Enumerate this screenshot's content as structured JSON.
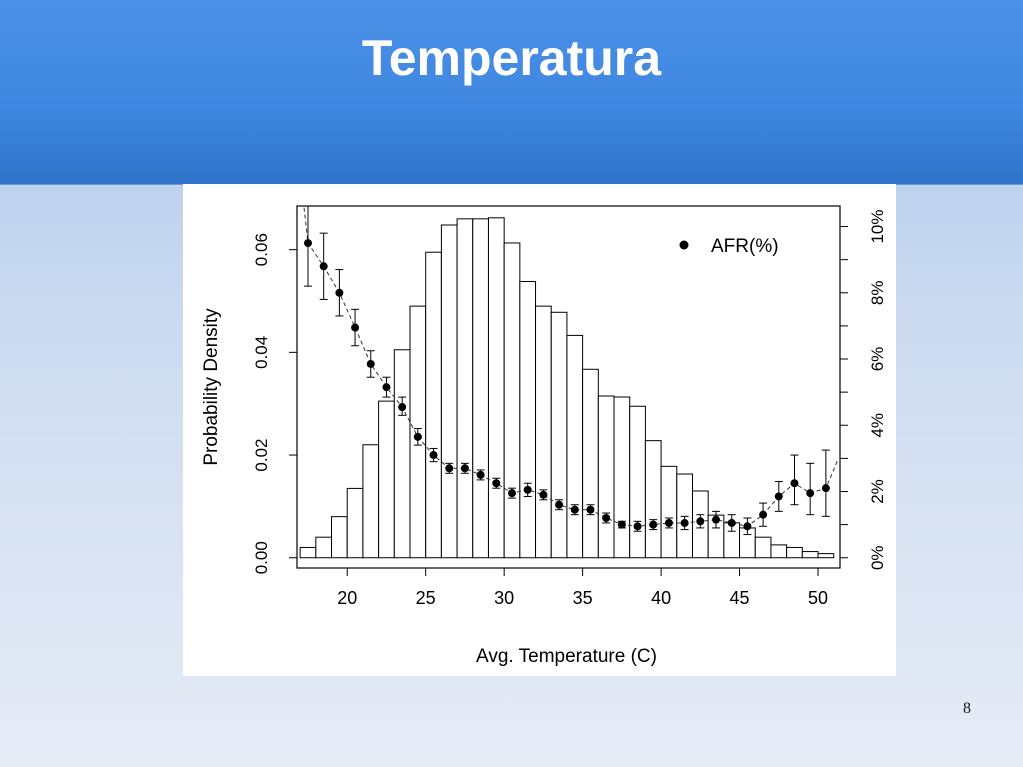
{
  "slide": {
    "title": "Temperatura",
    "page_number": "8"
  },
  "colors": {
    "header": "#4a90e6",
    "header_band": "#2f72c9",
    "title_text": "#ffffff",
    "ink": "#000000",
    "bar_fill": "#ffffff"
  },
  "chart_data": {
    "type": "bar",
    "title": "",
    "xlabel": "Avg. Temperature (C)",
    "ylabel": "Probability Density",
    "xlim": [
      16.8,
      51.4
    ],
    "ylim": [
      -0.002,
      0.0685
    ],
    "xticks": [
      20,
      25,
      30,
      35,
      40,
      45,
      50
    ],
    "yticks": [
      0.0,
      0.02,
      0.04,
      0.06
    ],
    "ytick_labels": [
      "0.00",
      "0.02",
      "0.04",
      "0.06"
    ],
    "y2label": "",
    "y2lim": [
      -0.31,
      10.62
    ],
    "y2ticks": [
      0,
      1,
      2,
      3,
      4,
      5,
      6,
      7,
      8,
      9,
      10
    ],
    "y2tick_labels": [
      {
        "v": 0,
        "label": "0%"
      },
      {
        "v": 2,
        "label": "2%"
      },
      {
        "v": 4,
        "label": "4%"
      },
      {
        "v": 6,
        "label": "6%"
      },
      {
        "v": 8,
        "label": "8%"
      },
      {
        "v": 10,
        "label": "10%"
      }
    ],
    "grid": false,
    "legend": {
      "position": "top-right",
      "entries": [
        "AFR(%)"
      ]
    },
    "histogram": {
      "bin_width": 1,
      "bin_start": [
        17,
        18,
        19,
        20,
        21,
        22,
        23,
        24,
        25,
        26,
        27,
        28,
        29,
        30,
        31,
        32,
        33,
        34,
        35,
        36,
        37,
        38,
        39,
        40,
        41,
        42,
        43,
        44,
        45,
        46,
        47,
        48,
        49,
        50
      ],
      "density": [
        0.002,
        0.004,
        0.008,
        0.0135,
        0.022,
        0.0305,
        0.0405,
        0.049,
        0.0595,
        0.0648,
        0.066,
        0.066,
        0.0662,
        0.0613,
        0.0538,
        0.049,
        0.0478,
        0.0433,
        0.0367,
        0.0315,
        0.0313,
        0.0295,
        0.0228,
        0.0178,
        0.0163,
        0.013,
        0.0083,
        0.0068,
        0.0058,
        0.004,
        0.0025,
        0.002,
        0.0012,
        0.0008
      ]
    },
    "series": [
      {
        "name": "AFR(%)",
        "axis": "right",
        "x": [
          17.5,
          18.5,
          19.5,
          20.5,
          21.5,
          22.5,
          23.5,
          24.5,
          25.5,
          26.5,
          27.5,
          28.5,
          29.5,
          30.5,
          31.5,
          32.5,
          33.5,
          34.5,
          35.5,
          36.5,
          37.5,
          38.5,
          39.5,
          40.5,
          41.5,
          42.5,
          43.5,
          44.5,
          45.5,
          46.5,
          47.5,
          48.5,
          49.5,
          50.5
        ],
        "y": [
          9.5,
          8.8,
          8.0,
          6.95,
          5.85,
          5.15,
          4.55,
          3.65,
          3.1,
          2.7,
          2.7,
          2.5,
          2.25,
          1.95,
          2.05,
          1.9,
          1.6,
          1.45,
          1.45,
          1.2,
          1.0,
          0.95,
          1.0,
          1.05,
          1.05,
          1.1,
          1.15,
          1.05,
          0.95,
          1.3,
          1.85,
          2.25,
          1.95,
          2.1
        ],
        "err_low": [
          8.2,
          7.8,
          7.3,
          6.4,
          5.45,
          4.85,
          4.3,
          3.4,
          2.9,
          2.55,
          2.55,
          2.35,
          2.1,
          1.8,
          1.85,
          1.75,
          1.45,
          1.3,
          1.3,
          1.05,
          0.9,
          0.8,
          0.85,
          0.9,
          0.85,
          0.9,
          0.9,
          0.8,
          0.7,
          0.95,
          1.4,
          1.6,
          1.3,
          1.25
        ],
        "err_high": [
          10.8,
          9.8,
          8.7,
          7.5,
          6.25,
          5.45,
          4.85,
          3.9,
          3.3,
          2.85,
          2.85,
          2.65,
          2.4,
          2.1,
          2.25,
          2.05,
          1.75,
          1.6,
          1.6,
          1.35,
          1.1,
          1.1,
          1.15,
          1.2,
          1.25,
          1.3,
          1.4,
          1.3,
          1.2,
          1.65,
          2.3,
          3.1,
          2.85,
          3.25
        ]
      }
    ]
  }
}
